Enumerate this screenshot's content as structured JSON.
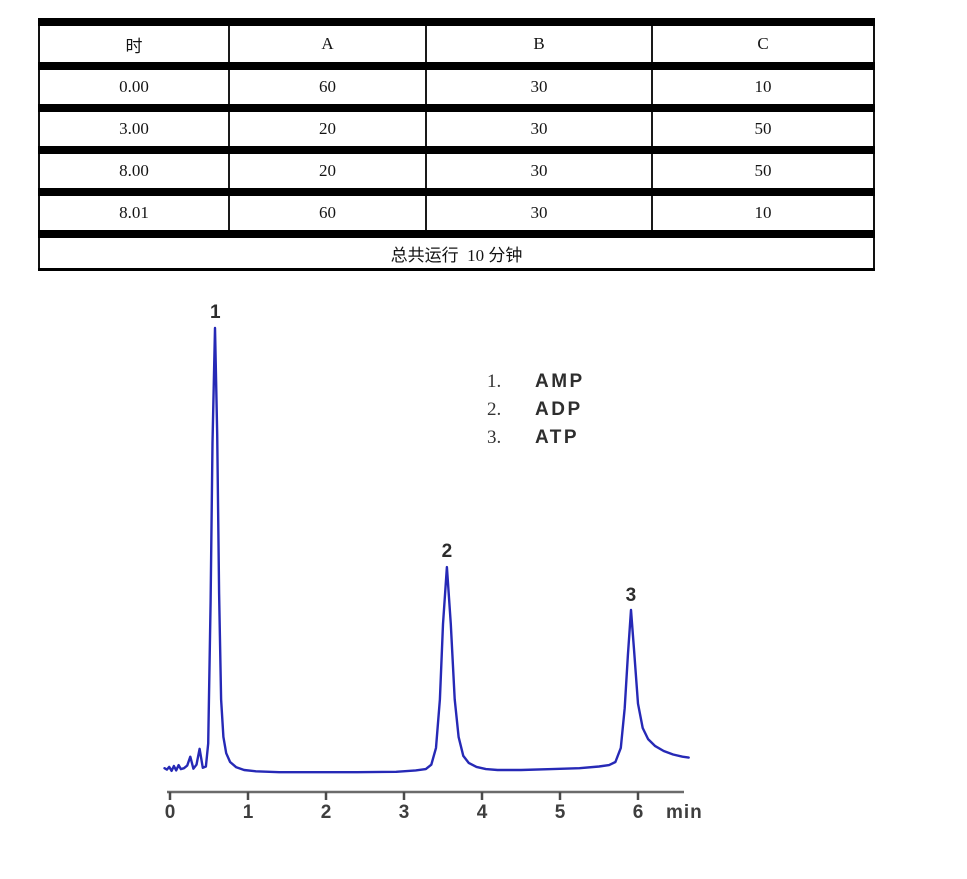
{
  "table": {
    "headers": [
      "时",
      "A",
      "B",
      "C"
    ],
    "rows": [
      [
        "0.00",
        "60",
        "30",
        "10"
      ],
      [
        "3.00",
        "20",
        "30",
        "50"
      ],
      [
        "8.00",
        "20",
        "30",
        "50"
      ],
      [
        "8.01",
        "60",
        "30",
        "10"
      ]
    ],
    "footer": "总共运行  10 分钟"
  },
  "chart_data": {
    "type": "line",
    "title": "",
    "xlabel": "min",
    "ylabel": "",
    "x_ticks": [
      0,
      1,
      2,
      3,
      4,
      5,
      6
    ],
    "xlim": [
      -0.07,
      6.65
    ],
    "grid": false,
    "legend_position": "upper-right",
    "line_color": "#2629b6",
    "axis_color": "#6b6b6b",
    "tick_color": "#4a4a4a",
    "peaks": [
      {
        "label": "1",
        "name": "AMP",
        "retention_min": 0.58,
        "relative_height_pct": 100
      },
      {
        "label": "2",
        "name": "ADP",
        "retention_min": 3.55,
        "relative_height_pct": 46
      },
      {
        "label": "3",
        "name": "ATP",
        "retention_min": 5.91,
        "relative_height_pct": 36
      }
    ],
    "legend": [
      {
        "marker": "1.",
        "name": "AMP"
      },
      {
        "marker": "2.",
        "name": "ADP"
      },
      {
        "marker": "3.",
        "name": "ATP"
      }
    ],
    "curve_points_min_pct": [
      [
        -0.07,
        0.4
      ],
      [
        -0.04,
        0.1
      ],
      [
        -0.01,
        0.7
      ],
      [
        0.02,
        -0.2
      ],
      [
        0.05,
        0.9
      ],
      [
        0.08,
        -0.1
      ],
      [
        0.11,
        1.1
      ],
      [
        0.14,
        0.2
      ],
      [
        0.18,
        0.4
      ],
      [
        0.22,
        1.0
      ],
      [
        0.26,
        3.0
      ],
      [
        0.3,
        0.3
      ],
      [
        0.34,
        1.2
      ],
      [
        0.38,
        4.8
      ],
      [
        0.42,
        0.5
      ],
      [
        0.46,
        0.8
      ],
      [
        0.49,
        6
      ],
      [
        0.52,
        38
      ],
      [
        0.545,
        74
      ],
      [
        0.577,
        100
      ],
      [
        0.605,
        76
      ],
      [
        0.63,
        40
      ],
      [
        0.655,
        16
      ],
      [
        0.685,
        7.5
      ],
      [
        0.72,
        3.8
      ],
      [
        0.77,
        1.8
      ],
      [
        0.85,
        0.6
      ],
      [
        0.95,
        0.0
      ],
      [
        1.1,
        -0.3
      ],
      [
        1.4,
        -0.5
      ],
      [
        1.9,
        -0.5
      ],
      [
        2.4,
        -0.5
      ],
      [
        2.9,
        -0.4
      ],
      [
        3.15,
        -0.1
      ],
      [
        3.28,
        0.2
      ],
      [
        3.35,
        1.2
      ],
      [
        3.41,
        5
      ],
      [
        3.46,
        16
      ],
      [
        3.5,
        33
      ],
      [
        3.55,
        45.9
      ],
      [
        3.6,
        33
      ],
      [
        3.65,
        16
      ],
      [
        3.7,
        7.5
      ],
      [
        3.76,
        3.2
      ],
      [
        3.83,
        1.6
      ],
      [
        3.93,
        0.7
      ],
      [
        4.05,
        0.2
      ],
      [
        4.2,
        0.0
      ],
      [
        4.5,
        0.0
      ],
      [
        4.9,
        0.2
      ],
      [
        5.25,
        0.4
      ],
      [
        5.5,
        0.8
      ],
      [
        5.63,
        1.1
      ],
      [
        5.71,
        1.8
      ],
      [
        5.78,
        5
      ],
      [
        5.83,
        14
      ],
      [
        5.87,
        26
      ],
      [
        5.91,
        36.2
      ],
      [
        5.95,
        27
      ],
      [
        6.0,
        15
      ],
      [
        6.06,
        9.5
      ],
      [
        6.13,
        7.0
      ],
      [
        6.22,
        5.4
      ],
      [
        6.33,
        4.3
      ],
      [
        6.45,
        3.5
      ],
      [
        6.57,
        3.0
      ],
      [
        6.65,
        2.8
      ]
    ]
  }
}
